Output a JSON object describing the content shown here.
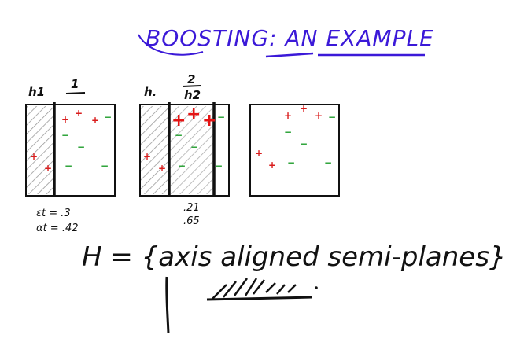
{
  "title": {
    "text": "BOOSTING: AN EXAMPLE"
  },
  "symbols": {
    "plus": "+",
    "minus": "−"
  },
  "boxes": [
    {
      "hyp_label": "h1",
      "round": "1",
      "epsilon": "εt = .3",
      "alpha": "αt = .42"
    },
    {
      "hyp_label": "h.",
      "round": "2",
      "h_label": "h2",
      "epsilon": ".21",
      "alpha": ".65"
    },
    {}
  ],
  "hypothesis": "H = {axis aligned semi-planes}",
  "colors": {
    "title": "#3b19d8",
    "positive": "#d91c1c",
    "negative": "#1f9d2b",
    "ink": "#111111",
    "hatch": "#9a9a9a"
  }
}
